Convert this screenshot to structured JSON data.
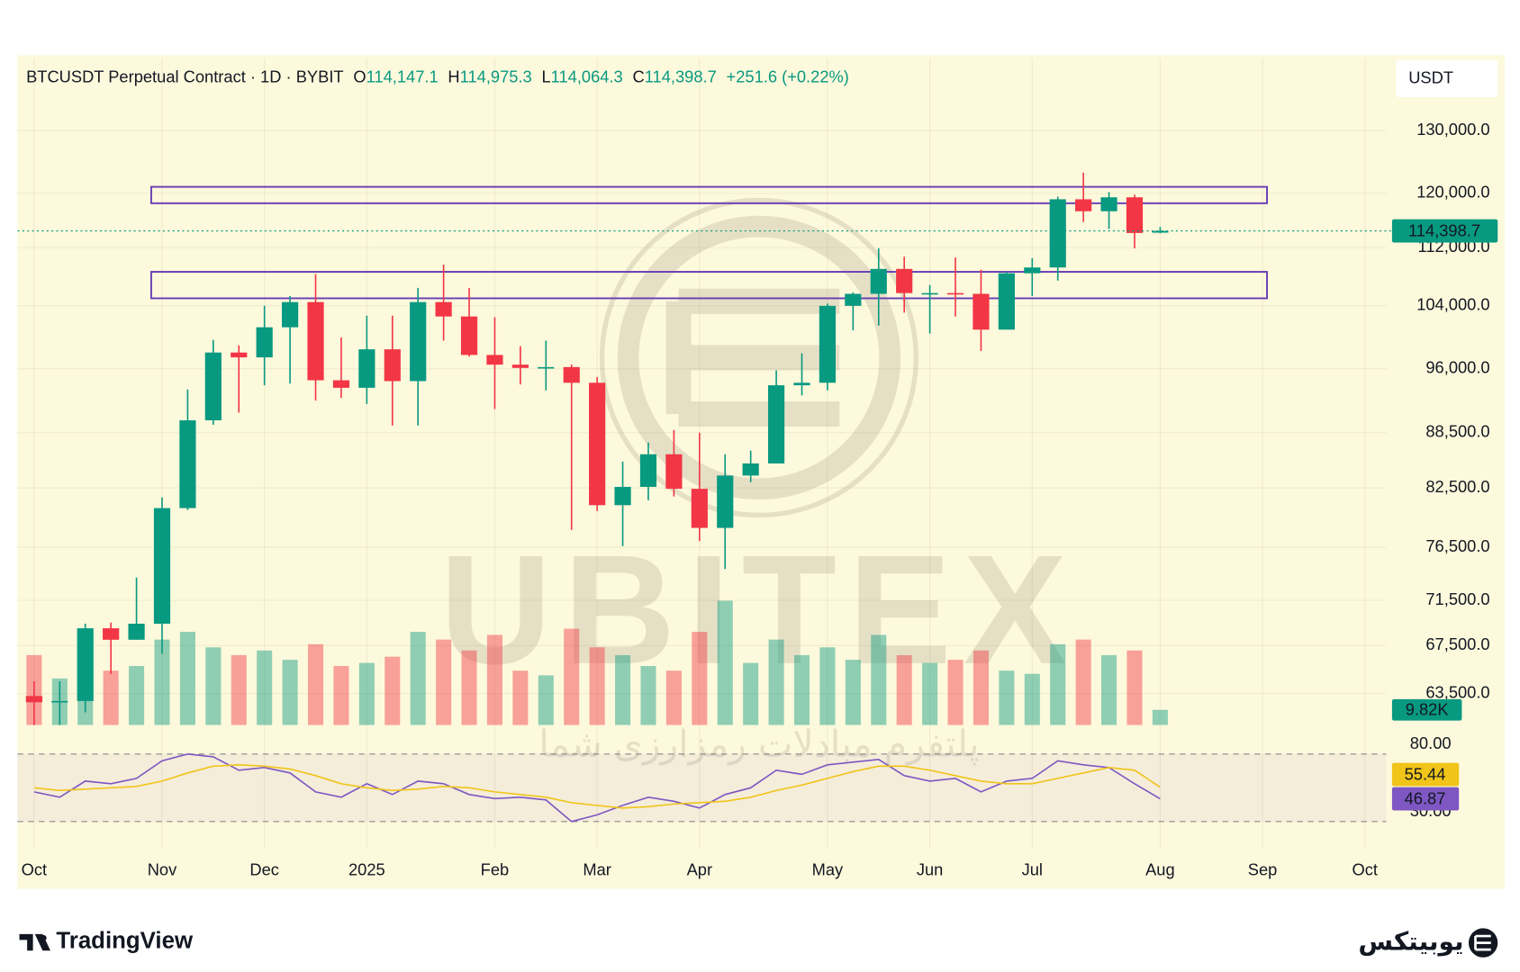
{
  "header": {
    "symbol": "BTCUSDT Perpetual Contract · 1D · BYBIT",
    "ohlc": [
      {
        "key": "O",
        "value": "114,147.1"
      },
      {
        "key": "H",
        "value": "114,975.3"
      },
      {
        "key": "L",
        "value": "114,064.3"
      },
      {
        "key": "C",
        "value": "114,398.7"
      }
    ],
    "change": "+251.6 (+0.22%)",
    "currency": "USDT"
  },
  "chart_data": {
    "type": "candlestick",
    "log": true,
    "grid": true,
    "up_color": "#089981",
    "down_color": "#f23645",
    "categories": [
      "Oct",
      null,
      null,
      null,
      null,
      "Nov",
      null,
      null,
      null,
      "Dec",
      null,
      null,
      null,
      "2025",
      null,
      null,
      null,
      null,
      "Feb",
      null,
      null,
      null,
      "Mar",
      null,
      null,
      null,
      "Apr",
      null,
      null,
      null,
      null,
      "May",
      null,
      null,
      null,
      "Jun",
      null,
      null,
      null,
      "Jul",
      null,
      null,
      null,
      null,
      "Aug",
      null,
      null,
      null,
      "Sep",
      null,
      null,
      null,
      "Oct"
    ],
    "open": [
      63300,
      62800,
      62900,
      69000,
      68000,
      69400,
      80400,
      89900,
      98000,
      97400,
      101200,
      104500,
      94600,
      93700,
      98400,
      94500,
      104500,
      102600,
      97700,
      96500,
      96100,
      96200,
      94300,
      80700,
      82600,
      86100,
      82400,
      78400,
      83800,
      85100,
      94000,
      94300,
      104000,
      105600,
      109000,
      105700,
      105700,
      105600,
      100900,
      108400,
      109200,
      119100,
      117300,
      119400,
      114147.1,
      null,
      null,
      null,
      null,
      null,
      null,
      null,
      null
    ],
    "high": [
      64500,
      64500,
      69400,
      69500,
      73600,
      81500,
      93500,
      99600,
      98900,
      104000,
      105300,
      108300,
      99900,
      102700,
      102700,
      106400,
      109600,
      106400,
      102500,
      98800,
      99500,
      96500,
      95000,
      85300,
      87400,
      88800,
      88500,
      86100,
      86500,
      95800,
      97900,
      104300,
      105800,
      111900,
      110700,
      106800,
      110600,
      108900,
      108600,
      110500,
      119500,
      123200,
      120200,
      119800,
      114975.3,
      null,
      null,
      null,
      null,
      null,
      null,
      null,
      null
    ],
    "low": [
      59800,
      58900,
      62000,
      65100,
      68000,
      66800,
      80200,
      89400,
      90800,
      94000,
      94200,
      92200,
      92500,
      91800,
      89300,
      89300,
      99500,
      97500,
      91200,
      94100,
      93400,
      78200,
      80100,
      76600,
      81200,
      81600,
      77100,
      74400,
      83100,
      85100,
      92800,
      93400,
      100800,
      101400,
      103100,
      100400,
      102600,
      98200,
      100900,
      105300,
      107400,
      115700,
      114700,
      111900,
      114064.3,
      null,
      null,
      null,
      null,
      null,
      null,
      null,
      null
    ],
    "close": [
      62800,
      62900,
      69000,
      68000,
      69400,
      80400,
      89900,
      98000,
      97400,
      101200,
      104500,
      94600,
      93700,
      98400,
      94500,
      104500,
      102600,
      97700,
      96500,
      96100,
      96200,
      94300,
      80700,
      82600,
      86100,
      82400,
      78400,
      83800,
      85100,
      94000,
      94300,
      104000,
      105600,
      109000,
      105700,
      105700,
      105600,
      100900,
      108400,
      109200,
      119100,
      117300,
      119400,
      114100,
      114398.7,
      null,
      null,
      null,
      null,
      null,
      null,
      null,
      null
    ],
    "ylim": [
      61000,
      142500
    ],
    "yticks": [
      {
        "value": 130000,
        "label": "130,000.0"
      },
      {
        "value": 120000,
        "label": "120,000.0"
      },
      {
        "value": 112000,
        "label": "112,000.0"
      },
      {
        "value": 104000,
        "label": "104,000.0"
      },
      {
        "value": 96000,
        "label": "96,000.0"
      },
      {
        "value": 88500,
        "label": "88,500.0"
      },
      {
        "value": 82500,
        "label": "82,500.0"
      },
      {
        "value": 76500,
        "label": "76,500.0"
      },
      {
        "value": 71500,
        "label": "71,500.0"
      },
      {
        "value": 67500,
        "label": "67,500.0"
      },
      {
        "value": 63500,
        "label": "63,500.0"
      }
    ],
    "last_price": {
      "value": 114398.7,
      "label": "114,398.7"
    },
    "zones": [
      {
        "ylim": [
          118500,
          121000
        ]
      },
      {
        "ylim": [
          105000,
          108600
        ]
      }
    ],
    "zone_color": "#6a3fb5",
    "volume": {
      "ylim": [
        0,
        100000
      ],
      "values": [
        45000,
        30000,
        40000,
        35000,
        38000,
        55000,
        60000,
        50000,
        45000,
        48000,
        42000,
        52000,
        38000,
        40000,
        44000,
        60000,
        55000,
        48000,
        58000,
        35000,
        32000,
        62000,
        50000,
        45000,
        38000,
        35000,
        60000,
        80000,
        40000,
        55000,
        45000,
        50000,
        42000,
        58000,
        45000,
        40000,
        42000,
        48000,
        35000,
        33000,
        52000,
        55000,
        45000,
        48000,
        9820,
        null,
        null,
        null,
        null,
        null,
        null,
        null,
        null
      ],
      "value_labels": [
        null,
        null,
        null,
        null,
        null,
        null,
        null,
        null,
        null,
        null,
        null,
        null,
        null,
        null,
        null,
        null,
        null,
        null,
        null,
        null,
        null,
        null,
        null,
        null,
        null,
        null,
        null,
        null,
        null,
        null,
        null,
        null,
        null,
        null,
        null,
        null,
        null,
        null,
        null,
        null,
        null,
        null,
        null,
        null,
        "9.82K",
        null,
        null,
        null,
        null,
        null,
        null,
        null,
        null
      ]
    },
    "rsi": {
      "ylim": [
        10,
        100
      ],
      "yticks": [
        {
          "value": 80,
          "label": "80.00"
        },
        {
          "value": 30,
          "label": "30.00"
        }
      ],
      "series": [
        {
          "color": "#7e57c2",
          "values": [
            52,
            48,
            60,
            58,
            62,
            75,
            80,
            78,
            68,
            70,
            66,
            52,
            48,
            58,
            50,
            60,
            58,
            50,
            47,
            48,
            46,
            30,
            35,
            42,
            48,
            45,
            40,
            50,
            55,
            68,
            65,
            72,
            74,
            76,
            64,
            60,
            62,
            52,
            60,
            62,
            75,
            72,
            70,
            58,
            46.87,
            null,
            null,
            null,
            null,
            null,
            null,
            null,
            null
          ]
        },
        {
          "color": "#f0c419",
          "values": [
            55,
            53,
            54,
            55,
            56,
            60,
            66,
            71,
            72,
            71,
            69,
            64,
            58,
            55,
            53,
            54,
            56,
            55,
            52,
            50,
            48,
            44,
            42,
            40,
            41,
            43,
            44,
            45,
            48,
            53,
            57,
            62,
            67,
            71,
            71,
            68,
            64,
            60,
            58,
            58,
            62,
            66,
            70,
            68,
            55.44,
            null,
            null,
            null,
            null,
            null,
            null,
            null,
            null
          ]
        }
      ]
    }
  },
  "watermark": {
    "brand": "UBITEX",
    "tagline": "پلتفرم مبادلات رمزارزی شما"
  },
  "footer": {
    "left": "TradingView",
    "right": "یوبیتکس"
  }
}
